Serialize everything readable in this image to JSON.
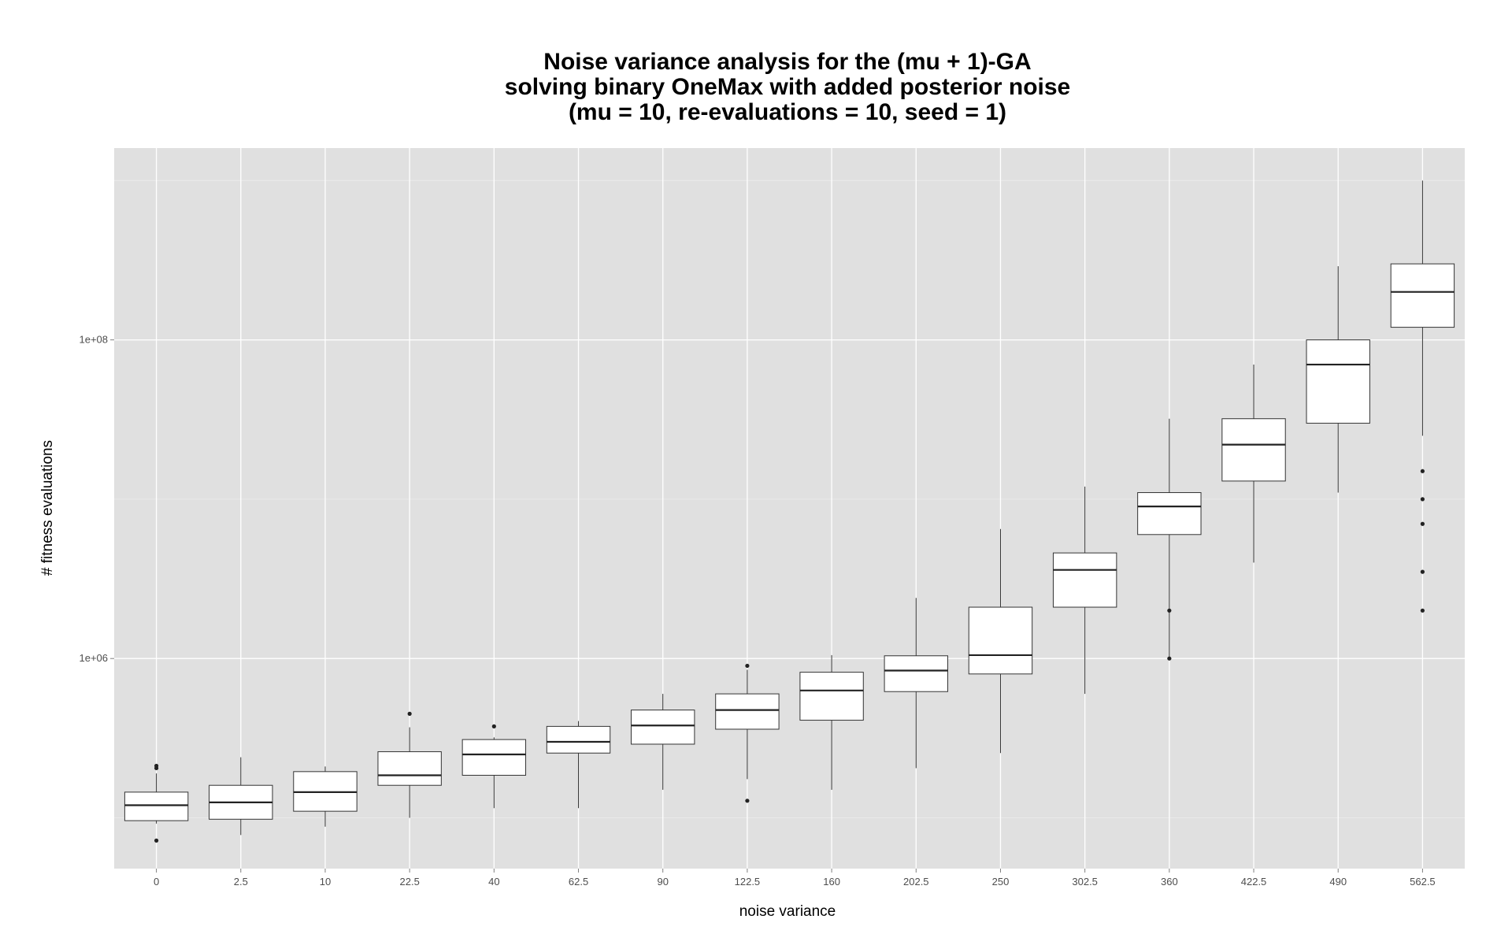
{
  "chart_data": {
    "type": "boxplot",
    "title_lines": [
      "Noise variance analysis for the (mu + 1)-GA",
      "solving binary OneMax with added posterior noise",
      "(mu = 10, re-evaluations = 10, seed = 1)"
    ],
    "xlabel": "noise variance",
    "ylabel": "# fitness evaluations",
    "y_scale": "log10",
    "ylim": [
      48000,
      1600000000
    ],
    "y_ticks": [
      {
        "value": 1000000,
        "label": "1e+06"
      },
      {
        "value": 100000000,
        "label": "1e+08"
      }
    ],
    "y_minor_gridlines": [
      100000,
      10000000,
      1000000000
    ],
    "grid": true,
    "background": "#e0e0e0",
    "categories": [
      "0",
      "2.5",
      "10",
      "22.5",
      "40",
      "62.5",
      "90",
      "122.5",
      "160",
      "202.5",
      "250",
      "302.5",
      "360",
      "422.5",
      "490",
      "562.5"
    ],
    "boxes": [
      {
        "category": "0",
        "whisker_low": 92000,
        "q1": 96000,
        "median": 120000,
        "q3": 145000,
        "whisker_high": 190000,
        "outliers": [
          72000,
          205000,
          212000
        ]
      },
      {
        "category": "2.5",
        "whisker_low": 78000,
        "q1": 98000,
        "median": 125000,
        "q3": 160000,
        "whisker_high": 240000,
        "outliers": []
      },
      {
        "category": "10",
        "whisker_low": 88000,
        "q1": 110000,
        "median": 145000,
        "q3": 195000,
        "whisker_high": 210000,
        "outliers": []
      },
      {
        "category": "22.5",
        "whisker_low": 100000,
        "q1": 160000,
        "median": 185000,
        "q3": 260000,
        "whisker_high": 370000,
        "outliers": [
          450000
        ]
      },
      {
        "category": "40",
        "whisker_low": 115000,
        "q1": 185000,
        "median": 250000,
        "q3": 310000,
        "whisker_high": 320000,
        "outliers": [
          375000
        ]
      },
      {
        "category": "62.5",
        "whisker_low": 115000,
        "q1": 255000,
        "median": 300000,
        "q3": 375000,
        "whisker_high": 405000,
        "outliers": []
      },
      {
        "category": "90",
        "whisker_low": 150000,
        "q1": 290000,
        "median": 380000,
        "q3": 475000,
        "whisker_high": 600000,
        "outliers": []
      },
      {
        "category": "122.5",
        "whisker_low": 175000,
        "q1": 360000,
        "median": 475000,
        "q3": 600000,
        "whisker_high": 850000,
        "outliers": [
          128000,
          900000
        ]
      },
      {
        "category": "160",
        "whisker_low": 150000,
        "q1": 410000,
        "median": 630000,
        "q3": 820000,
        "whisker_high": 1050000,
        "outliers": []
      },
      {
        "category": "202.5",
        "whisker_low": 205000,
        "q1": 620000,
        "median": 840000,
        "q3": 1040000,
        "whisker_high": 2400000,
        "outliers": []
      },
      {
        "category": "250",
        "whisker_low": 255000,
        "q1": 800000,
        "median": 1050000,
        "q3": 2100000,
        "whisker_high": 6500000,
        "outliers": []
      },
      {
        "category": "302.5",
        "whisker_low": 600000,
        "q1": 2100000,
        "median": 3600000,
        "q3": 4600000,
        "whisker_high": 12000000,
        "outliers": []
      },
      {
        "category": "360",
        "whisker_low": 1000000,
        "q1": 6000000,
        "median": 9000000,
        "q3": 11000000,
        "whisker_high": 32000000,
        "outliers": [
          1000000,
          2000000
        ]
      },
      {
        "category": "422.5",
        "whisker_low": 4000000,
        "q1": 13000000,
        "median": 22000000,
        "q3": 32000000,
        "whisker_high": 70000000,
        "outliers": []
      },
      {
        "category": "490",
        "whisker_low": 11000000,
        "q1": 30000000,
        "median": 70000000,
        "q3": 100000000,
        "whisker_high": 290000000,
        "outliers": []
      },
      {
        "category": "562.5",
        "whisker_low": 25000000,
        "q1": 120000000,
        "median": 200000000,
        "q3": 300000000,
        "whisker_high": 1000000000,
        "outliers": [
          2000000,
          3500000,
          7000000,
          10000000,
          15000000
        ]
      }
    ]
  }
}
